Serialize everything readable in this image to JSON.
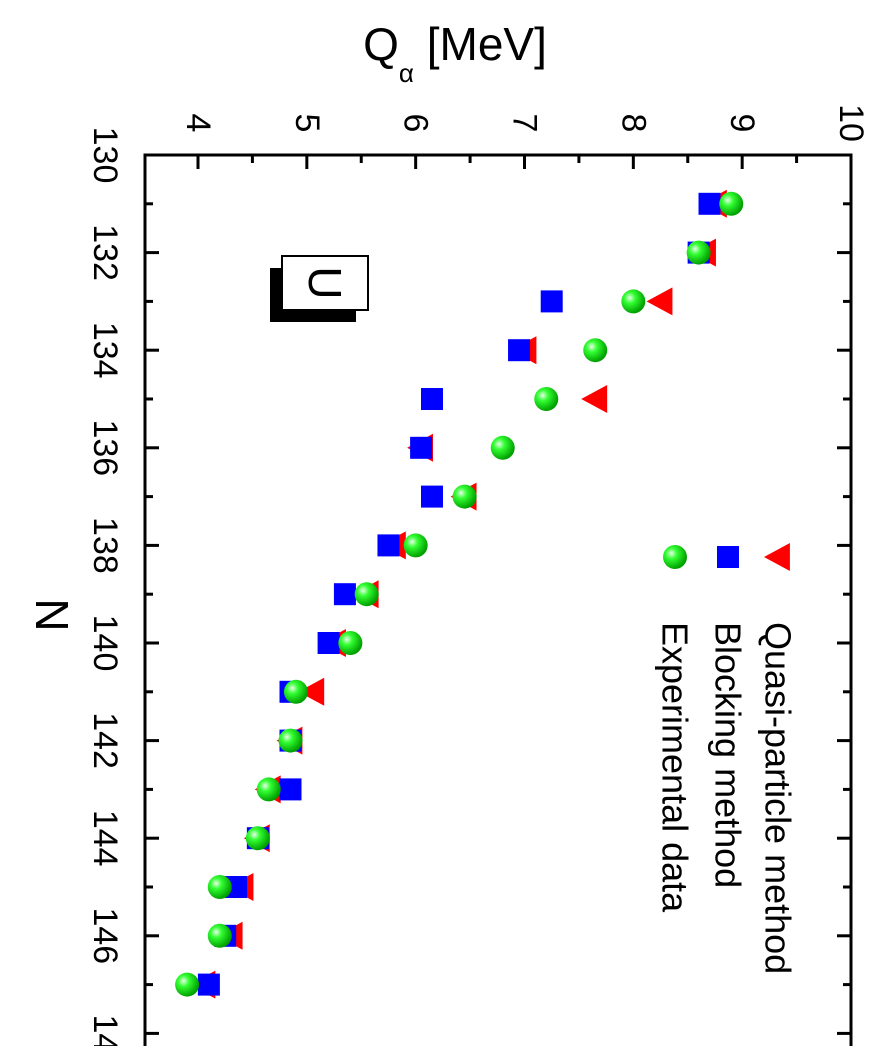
{
  "chart_data": {
    "type": "scatter",
    "orientation": "rotated-90-clockwise",
    "xlabel": "N",
    "ylabel": {
      "main": "Q",
      "subscript": "α",
      "unit": " [MeV]"
    },
    "xlim": [
      130,
      148
    ],
    "ylim": [
      3.5,
      10
    ],
    "xticks": [
      "130",
      "132",
      "134",
      "136",
      "138",
      "140",
      "142",
      "144",
      "146",
      "14"
    ],
    "yticks": [
      "4",
      "5",
      "6",
      "7",
      "8",
      "9",
      "10"
    ],
    "annotation": "U",
    "legend_position": "top-right",
    "grid": false,
    "series": [
      {
        "name": "Quasi-particle method",
        "marker": "triangle",
        "color": "#ff0000",
        "x": [
          131,
          132,
          133,
          134,
          135,
          136,
          137,
          138,
          139,
          140,
          141,
          142,
          143,
          144,
          145,
          146,
          147
        ],
        "y": [
          8.75,
          8.65,
          8.25,
          7.0,
          7.65,
          6.05,
          6.45,
          5.8,
          5.55,
          5.25,
          5.05,
          4.85,
          4.65,
          4.55,
          4.4,
          4.3,
          4.05
        ]
      },
      {
        "name": "Blocking method",
        "marker": "square",
        "color": "#0000ff",
        "x": [
          131,
          132,
          133,
          134,
          135,
          136,
          137,
          138,
          139,
          140,
          141,
          142,
          143,
          144,
          145,
          146,
          147
        ],
        "y": [
          8.7,
          8.6,
          7.25,
          6.95,
          6.15,
          6.05,
          6.15,
          5.75,
          5.35,
          5.2,
          4.85,
          4.85,
          4.85,
          4.55,
          4.35,
          4.25,
          4.1
        ]
      },
      {
        "name": "Experimental data",
        "marker": "sphere",
        "color": "#00ee00",
        "x": [
          131,
          132,
          133,
          134,
          135,
          136,
          137,
          138,
          139,
          140,
          141,
          142,
          143,
          144,
          145,
          146,
          147
        ],
        "y": [
          8.9,
          8.6,
          8.0,
          7.65,
          7.2,
          6.8,
          6.45,
          6.0,
          5.55,
          5.4,
          4.9,
          4.85,
          4.65,
          4.55,
          4.2,
          4.2,
          3.9
        ]
      }
    ]
  }
}
